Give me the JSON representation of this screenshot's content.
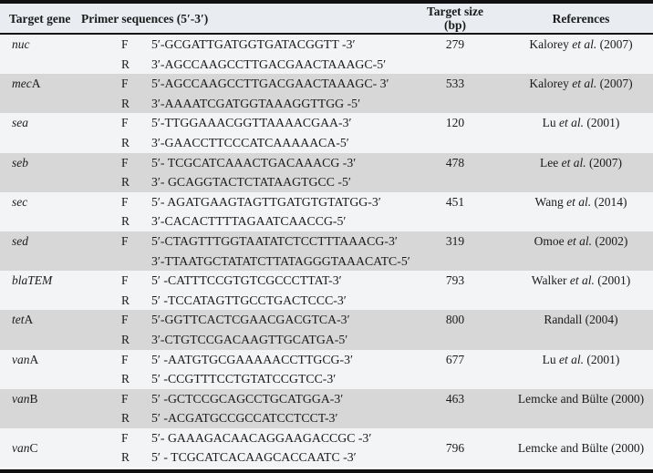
{
  "table": {
    "colors": {
      "header_bg": "#e9edf2",
      "row_light": "#f3f4f6",
      "row_gray": "#d7d7d7",
      "border": "#101010",
      "text": "#1b1b1b"
    },
    "header": {
      "gene": "Target gene",
      "primer": "Primer sequences (5′-3′)",
      "size_line1": "Target size",
      "size_line2": "(bp)",
      "references": "References"
    },
    "groups": [
      {
        "gene_italic": "nuc",
        "gene_roman": "",
        "size": "279",
        "ref_pre": "Kalorey ",
        "ref_italic": "et al.",
        "ref_post": " (2007)",
        "rows": [
          {
            "dir": "F",
            "seq": "5′-GCGATTGATGGTGATACGGTT -3′"
          },
          {
            "dir": "R",
            "seq": "3′-AGCCAAGCCTTGACGAACTAAAGC-5′"
          }
        ]
      },
      {
        "gene_italic": "mec",
        "gene_roman": "A",
        "size": "533",
        "ref_pre": "Kalorey ",
        "ref_italic": "et al.",
        "ref_post": " (2007)",
        "rows": [
          {
            "dir": "F",
            "seq": "5′-AGCCAAGCCTTGACGAACTAAAGC- 3′"
          },
          {
            "dir": "R",
            "seq": "3′-AAAATCGATGGTAAAGGTTGG -5′"
          }
        ]
      },
      {
        "gene_italic": "sea",
        "gene_roman": "",
        "size": "120",
        "ref_pre": "Lu ",
        "ref_italic": "et al.",
        "ref_post": " (2001)",
        "rows": [
          {
            "dir": "F",
            "seq": "5′-TTGGAAACGGTTAAAACGAA-3′"
          },
          {
            "dir": "R",
            "seq": "3′-GAACCTTCCCATCAAAAACA-5′"
          }
        ]
      },
      {
        "gene_italic": "seb",
        "gene_roman": "",
        "size": "478",
        "ref_pre": "Lee ",
        "ref_italic": "et al.",
        "ref_post": " (2007)",
        "rows": [
          {
            "dir": "F",
            "seq": "5′- TCGCATCAAACTGACAAACG -3′"
          },
          {
            "dir": "R",
            "seq": "3′- GCAGGTACTCTATAAGTGCC -5′"
          }
        ]
      },
      {
        "gene_italic": "sec",
        "gene_roman": "",
        "size": "451",
        "ref_pre": "Wang ",
        "ref_italic": "et al.",
        "ref_post": " (2014)",
        "rows": [
          {
            "dir": "F",
            "seq": "5′- AGATGAAGTAGTTGATGTGTATGG-3′"
          },
          {
            "dir": "R",
            "seq": "3′-CACACTTTTAGAATCAACCG-5′"
          }
        ]
      },
      {
        "gene_italic": "sed",
        "gene_roman": "",
        "size": "319",
        "ref_pre": "Omoe ",
        "ref_italic": "et al.",
        "ref_post": " (2002)",
        "rows": [
          {
            "dir": "F",
            "seq": "5′-CTAGTTTGGTAATATCTCCTTTAAACG-3′"
          },
          {
            "dir": "",
            "seq": "3′-TTAATGCTATATCTTATAGGGTAAACATC-5′"
          }
        ]
      },
      {
        "gene_italic": "blaTEM",
        "gene_roman": "",
        "size": "793",
        "ref_pre": "Walker ",
        "ref_italic": "et al.",
        "ref_post": " (2001)",
        "rows": [
          {
            "dir": "F",
            "seq": "5′ -CATTTCCGTGTCGCCCTTAT-3′"
          },
          {
            "dir": "R",
            "seq": "5′ -TCCATAGTTGCCTGACTCCC-3′"
          }
        ]
      },
      {
        "gene_italic": "tet",
        "gene_roman": "A",
        "size": "800",
        "ref_pre": "Randall (2004)",
        "ref_italic": "",
        "ref_post": "",
        "rows": [
          {
            "dir": "F",
            "seq": "5′-GGTTCACTCGAACGACGTCA-3′"
          },
          {
            "dir": "R",
            "seq": "3′-CTGTCCGACAAGTTGCATGA-5′"
          }
        ]
      },
      {
        "gene_italic": "van",
        "gene_roman": "A",
        "size": "677",
        "ref_pre": "Lu ",
        "ref_italic": "et al.",
        "ref_post": " (2001)",
        "rows": [
          {
            "dir": "F",
            "seq": "5′ -AATGTGCGAAAAACCTTGCG-3′"
          },
          {
            "dir": "R",
            "seq": "5′ -CCGTTTCCTGTATCCGTCC-3′"
          }
        ]
      },
      {
        "gene_italic": "van",
        "gene_roman": "B",
        "size": "463",
        "ref_pre": "Lemcke and Bülte (2000)",
        "ref_italic": "",
        "ref_post": "",
        "rows": [
          {
            "dir": "F",
            "seq": "5′ -GCTCCGCAGCCTGCATGGA-3′"
          },
          {
            "dir": "R",
            "seq": "5′ -ACGATGCCGCCATCCTCCT-3′"
          }
        ]
      },
      {
        "gene_italic": "van",
        "gene_roman": "C",
        "size": "796",
        "ref_pre": "Lemcke and Bülte (2000)",
        "ref_italic": "",
        "ref_post": "",
        "rows": [
          {
            "dir": "F",
            "seq": "5′- GAAAGACAACAGGAAGACCGC -3′"
          },
          {
            "dir": "R",
            "seq": "5′ - TCGCATCACAAGCACCAATC -3′"
          }
        ]
      }
    ]
  }
}
